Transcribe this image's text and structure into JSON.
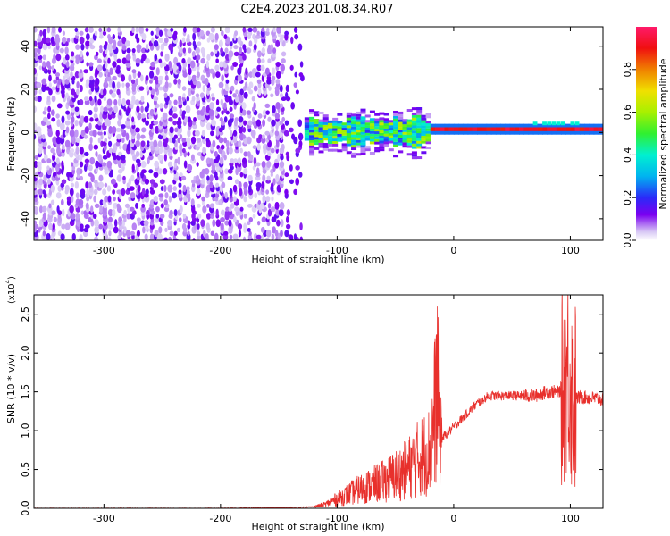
{
  "title": "C2E4.2023.201.08.34.R07",
  "chart_data": [
    {
      "type": "heatmap",
      "xlabel": "Height of straight line (km)",
      "ylabel": "Frequency (Hz)",
      "xlim": [
        -360,
        128
      ],
      "ylim": [
        -50,
        49
      ],
      "xticks": [
        -300,
        -200,
        -100,
        0,
        100
      ],
      "yticks": [
        -40,
        -20,
        0,
        20,
        40
      ],
      "colorbar": {
        "label": "Normalized spectral amplitude",
        "range": [
          0.0,
          1.0
        ],
        "ticks": [
          0.0,
          0.2,
          0.4,
          0.6,
          0.8
        ]
      },
      "regions": [
        {
          "x": [
            -360,
            -130
          ],
          "freq_spread": [
            -50,
            49
          ],
          "amplitude": 0.15,
          "note": "scattered low amplitude"
        },
        {
          "x": [
            -130,
            -20
          ],
          "freq_spread": [
            -8,
            8
          ],
          "amplitude": 0.45
        },
        {
          "x": [
            -20,
            128
          ],
          "freq_center": 1.5,
          "freq_width": 2,
          "amplitude": 0.9
        }
      ],
      "grid": false
    },
    {
      "type": "line",
      "xlabel": "Height of straight line (km)",
      "ylabel": "SNR (10 * v/v)",
      "yscale_label": "(x10",
      "yscale_exp": "4",
      "yscale_close": ")",
      "xlim": [
        -360,
        128
      ],
      "ylim": [
        0,
        2.75
      ],
      "xticks": [
        -300,
        -200,
        -100,
        0,
        100
      ],
      "yticks": [
        0.0,
        0.5,
        1.0,
        1.5,
        2.0,
        2.5
      ],
      "color": "#e8302c",
      "series": [
        {
          "x": [
            -360,
            -300,
            -200,
            -140,
            -120,
            -110,
            -100,
            -80,
            -60,
            -40,
            -30,
            -20,
            -16,
            -14,
            -12,
            -10,
            0,
            10,
            20,
            30,
            50,
            70,
            80,
            90,
            95,
            98,
            100,
            102,
            105,
            110,
            120,
            128
          ],
          "y": [
            0.0,
            0.0,
            0.0,
            0.01,
            0.02,
            0.05,
            0.12,
            0.25,
            0.35,
            0.5,
            0.65,
            0.75,
            1.3,
            1.6,
            1.0,
            0.9,
            1.05,
            1.2,
            1.35,
            1.45,
            1.45,
            1.45,
            1.5,
            1.5,
            1.6,
            1.8,
            1.6,
            1.4,
            1.42,
            1.43,
            1.42,
            1.4
          ]
        }
      ],
      "grid": false
    }
  ]
}
